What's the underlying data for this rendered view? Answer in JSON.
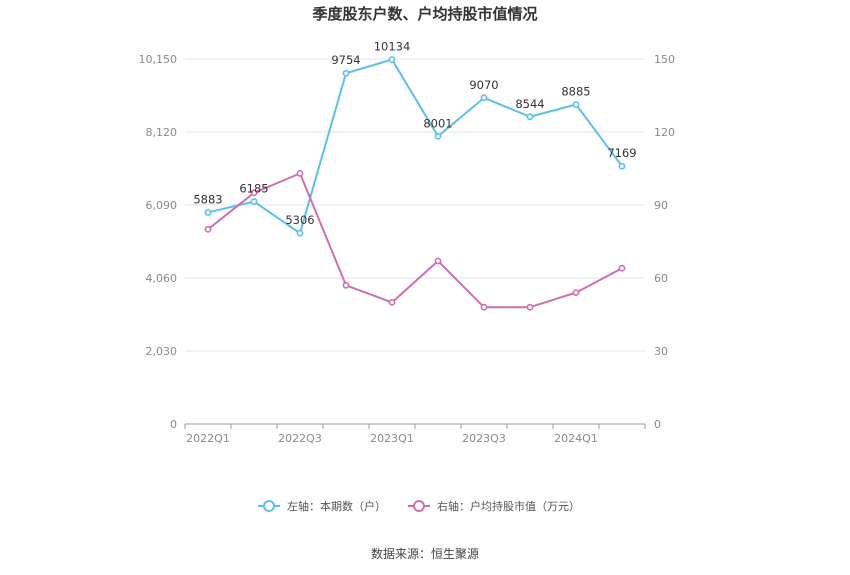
{
  "chart_data": {
    "type": "line",
    "title": "季度股东户数、户均持股市值情况",
    "categories": [
      "2022Q1",
      "2022Q2",
      "2022Q3",
      "2022Q4",
      "2023Q1",
      "2023Q2",
      "2023Q3",
      "2023Q4",
      "2024Q1",
      "2024Q2"
    ],
    "x_tick_labels": [
      "2022Q1",
      "2022Q3",
      "2023Q1",
      "2023Q3",
      "2024Q1"
    ],
    "y_left": {
      "ticks": [
        "0",
        "2,030",
        "4,060",
        "6,090",
        "8,120",
        "10,150"
      ],
      "range": [
        0,
        10150
      ]
    },
    "y_right": {
      "ticks": [
        "0",
        "30",
        "60",
        "90",
        "120",
        "150"
      ],
      "range": [
        0,
        150
      ]
    },
    "series": [
      {
        "name": "左轴：本期数（户）",
        "axis": "left",
        "color": "#5bc0eb",
        "values": [
          5883,
          6185,
          5306,
          9754,
          10134,
          8001,
          9070,
          8544,
          8885,
          7169
        ],
        "labels": [
          "5883",
          "6185",
          "5306",
          "9754",
          "10134",
          "8001",
          "9070",
          "8544",
          "8885",
          "7169"
        ]
      },
      {
        "name": "右轴：户均持股市值（万元）",
        "axis": "right",
        "color": "#d06fae",
        "values": [
          80,
          95,
          103,
          57,
          50,
          67,
          48,
          48,
          54,
          64
        ]
      }
    ],
    "grid": true,
    "legend_position": "bottom"
  },
  "source_text": "数据来源：恒生聚源"
}
